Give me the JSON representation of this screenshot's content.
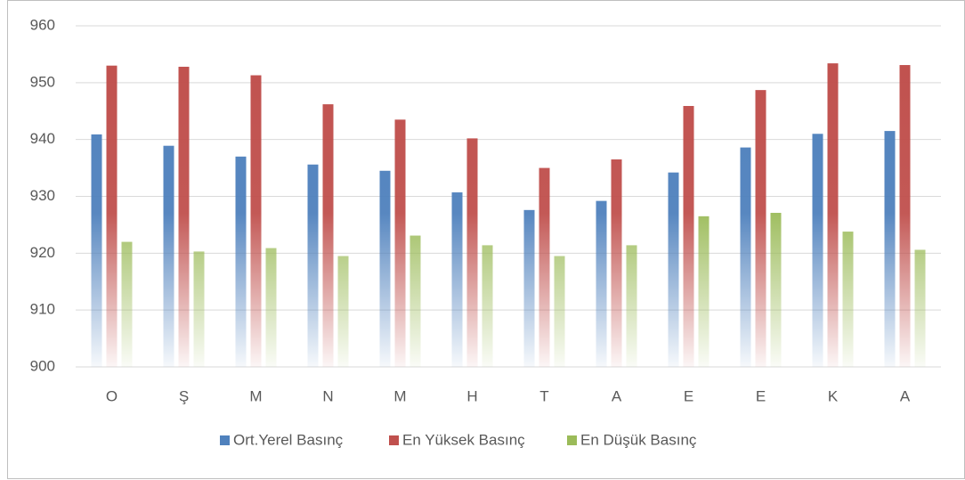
{
  "chart_data": {
    "type": "bar",
    "categories": [
      "O",
      "Ş",
      "M",
      "N",
      "M",
      "H",
      "T",
      "A",
      "E",
      "E",
      "K",
      "A"
    ],
    "series": [
      {
        "name": "Ort.Yerel Basınç",
        "color": "#4f81bd",
        "values": [
          940.9,
          938.9,
          937.0,
          935.6,
          934.5,
          930.7,
          927.6,
          929.2,
          934.2,
          938.6,
          941.0,
          941.5
        ]
      },
      {
        "name": "En Yüksek Basınç",
        "color": "#c0504d",
        "values": [
          953.0,
          952.8,
          951.3,
          946.2,
          943.5,
          940.2,
          935.0,
          936.5,
          945.9,
          948.7,
          953.4,
          953.1
        ]
      },
      {
        "name": "En Düşük Basınç",
        "color": "#9bbb59",
        "values": [
          922.0,
          920.3,
          920.9,
          919.5,
          923.1,
          921.4,
          919.5,
          921.4,
          926.5,
          927.1,
          923.8,
          920.6
        ]
      }
    ],
    "ylim": [
      900,
      960
    ],
    "yticks": [
      900,
      910,
      920,
      930,
      940,
      950,
      960
    ],
    "grid": true,
    "legend": "bottom"
  }
}
